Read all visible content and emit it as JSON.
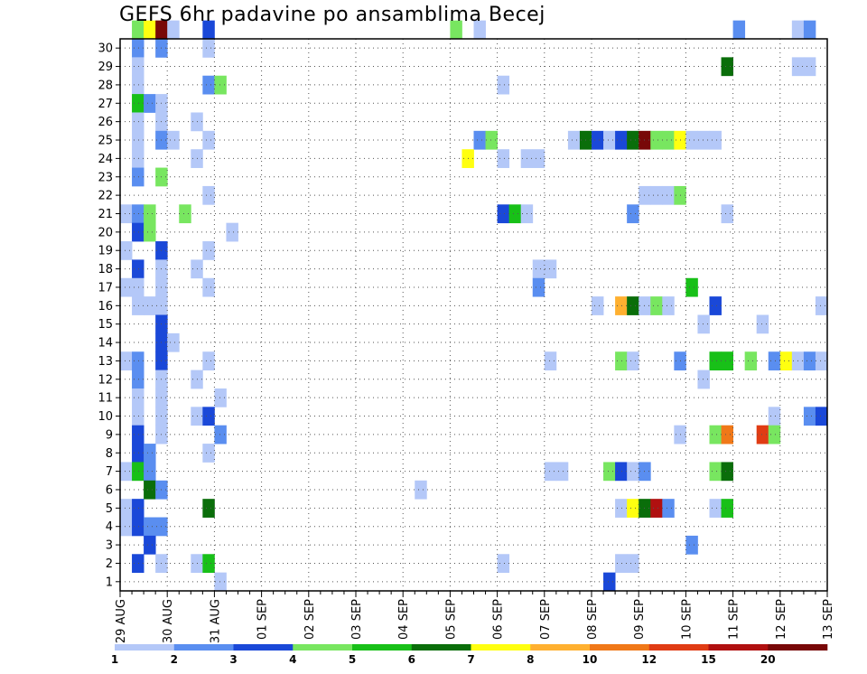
{
  "chart_data": {
    "type": "heatmap",
    "title": "GEFS 6hr padavine po ansamblima Becej",
    "xlabel": "",
    "ylabel": "",
    "x_tick_labels": [
      "29 AUG",
      "30 AUG",
      "31 AUG",
      "01 SEP",
      "02 SEP",
      "03 SEP",
      "04 SEP",
      "05 SEP",
      "06 SEP",
      "07 SEP",
      "08 SEP",
      "09 SEP",
      "10 SEP",
      "11 SEP",
      "12 SEP",
      "13 SEP"
    ],
    "x_unit": "6-hour steps",
    "x_range": [
      0,
      60
    ],
    "y_tick_labels": [
      1,
      2,
      3,
      4,
      5,
      6,
      7,
      8,
      9,
      10,
      11,
      12,
      13,
      14,
      15,
      16,
      17,
      18,
      19,
      20,
      21,
      22,
      23,
      24,
      25,
      26,
      27,
      28,
      29,
      30
    ],
    "y_range": [
      0,
      30
    ],
    "grid": true,
    "colorbar": {
      "labels": [
        "1",
        "2",
        "3",
        "4",
        "5",
        "6",
        "7",
        "8",
        "10",
        "12",
        "15",
        "20"
      ],
      "colors": [
        "#b4c8f8",
        "#5a8ef0",
        "#1a48d8",
        "#78e660",
        "#18c018",
        "#0a6e0a",
        "#ffff10",
        "#ffb030",
        "#f07818",
        "#e03c14",
        "#b01010",
        "#780808"
      ]
    },
    "cells": [
      [
        1,
        30,
        3
      ],
      [
        2,
        30,
        6
      ],
      [
        3,
        30,
        11
      ],
      [
        4,
        30,
        0
      ],
      [
        7,
        30,
        2
      ],
      [
        28,
        30,
        3
      ],
      [
        30,
        30,
        0
      ],
      [
        52,
        30,
        1
      ],
      [
        57,
        30,
        0
      ],
      [
        58,
        30,
        1
      ],
      [
        1,
        29,
        1
      ],
      [
        3,
        29,
        1
      ],
      [
        7,
        29,
        0
      ],
      [
        1,
        28,
        0
      ],
      [
        51,
        28,
        5
      ],
      [
        57,
        28,
        0
      ],
      [
        58,
        28,
        0
      ],
      [
        1,
        27,
        0
      ],
      [
        7,
        27,
        1
      ],
      [
        8,
        27,
        3
      ],
      [
        32,
        27,
        0
      ],
      [
        1,
        26,
        4
      ],
      [
        2,
        26,
        1
      ],
      [
        3,
        26,
        0
      ],
      [
        1,
        25,
        0
      ],
      [
        3,
        25,
        0
      ],
      [
        6,
        25,
        0
      ],
      [
        1,
        24,
        0
      ],
      [
        3,
        24,
        1
      ],
      [
        4,
        24,
        0
      ],
      [
        7,
        24,
        0
      ],
      [
        30,
        24,
        1
      ],
      [
        31,
        24,
        3
      ],
      [
        38,
        24,
        0
      ],
      [
        39,
        24,
        5
      ],
      [
        40,
        24,
        2
      ],
      [
        41,
        24,
        0
      ],
      [
        42,
        24,
        2
      ],
      [
        43,
        24,
        5
      ],
      [
        44,
        24,
        11
      ],
      [
        45,
        24,
        3
      ],
      [
        46,
        24,
        3
      ],
      [
        47,
        24,
        6
      ],
      [
        48,
        24,
        0
      ],
      [
        49,
        24,
        0
      ],
      [
        50,
        24,
        0
      ],
      [
        1,
        23,
        0
      ],
      [
        6,
        23,
        0
      ],
      [
        29,
        23,
        6
      ],
      [
        32,
        23,
        0
      ],
      [
        34,
        23,
        0
      ],
      [
        35,
        23,
        0
      ],
      [
        1,
        22,
        1
      ],
      [
        3,
        22,
        3
      ],
      [
        7,
        21,
        0
      ],
      [
        44,
        21,
        0
      ],
      [
        45,
        21,
        0
      ],
      [
        46,
        21,
        0
      ],
      [
        47,
        21,
        3
      ],
      [
        0,
        20,
        0
      ],
      [
        1,
        20,
        1
      ],
      [
        2,
        20,
        3
      ],
      [
        5,
        20,
        3
      ],
      [
        32,
        20,
        2
      ],
      [
        33,
        20,
        4
      ],
      [
        34,
        20,
        0
      ],
      [
        43,
        20,
        1
      ],
      [
        51,
        20,
        0
      ],
      [
        1,
        19,
        2
      ],
      [
        2,
        19,
        3
      ],
      [
        9,
        19,
        0
      ],
      [
        0,
        18,
        0
      ],
      [
        3,
        18,
        2
      ],
      [
        7,
        18,
        0
      ],
      [
        1,
        17,
        2
      ],
      [
        3,
        17,
        0
      ],
      [
        6,
        17,
        0
      ],
      [
        35,
        17,
        0
      ],
      [
        36,
        17,
        0
      ],
      [
        0,
        16,
        0
      ],
      [
        1,
        16,
        0
      ],
      [
        3,
        16,
        0
      ],
      [
        7,
        16,
        0
      ],
      [
        35,
        16,
        1
      ],
      [
        48,
        16,
        4
      ],
      [
        1,
        15,
        0
      ],
      [
        2,
        15,
        0
      ],
      [
        3,
        15,
        0
      ],
      [
        40,
        15,
        0
      ],
      [
        42,
        15,
        7
      ],
      [
        43,
        15,
        5
      ],
      [
        44,
        15,
        0
      ],
      [
        45,
        15,
        3
      ],
      [
        46,
        15,
        0
      ],
      [
        50,
        15,
        2
      ],
      [
        59,
        15,
        0
      ],
      [
        3,
        14,
        2
      ],
      [
        49,
        14,
        0
      ],
      [
        54,
        14,
        0
      ],
      [
        3,
        13,
        2
      ],
      [
        4,
        13,
        0
      ],
      [
        0,
        12,
        0
      ],
      [
        1,
        12,
        1
      ],
      [
        3,
        12,
        2
      ],
      [
        7,
        12,
        0
      ],
      [
        36,
        12,
        0
      ],
      [
        42,
        12,
        3
      ],
      [
        43,
        12,
        0
      ],
      [
        47,
        12,
        1
      ],
      [
        50,
        12,
        4
      ],
      [
        51,
        12,
        4
      ],
      [
        53,
        12,
        3
      ],
      [
        55,
        12,
        1
      ],
      [
        56,
        12,
        6
      ],
      [
        57,
        12,
        0
      ],
      [
        58,
        12,
        1
      ],
      [
        59,
        12,
        0
      ],
      [
        1,
        11,
        1
      ],
      [
        3,
        11,
        0
      ],
      [
        6,
        11,
        0
      ],
      [
        49,
        11,
        0
      ],
      [
        1,
        10,
        0
      ],
      [
        3,
        10,
        0
      ],
      [
        8,
        10,
        0
      ],
      [
        1,
        9,
        0
      ],
      [
        3,
        9,
        0
      ],
      [
        6,
        9,
        0
      ],
      [
        7,
        9,
        2
      ],
      [
        55,
        9,
        0
      ],
      [
        58,
        9,
        1
      ],
      [
        59,
        9,
        2
      ],
      [
        1,
        8,
        2
      ],
      [
        3,
        8,
        0
      ],
      [
        8,
        8,
        1
      ],
      [
        47,
        8,
        0
      ],
      [
        50,
        8,
        3
      ],
      [
        51,
        8,
        8
      ],
      [
        54,
        8,
        9
      ],
      [
        55,
        8,
        3
      ],
      [
        1,
        7,
        2
      ],
      [
        2,
        7,
        1
      ],
      [
        7,
        7,
        0
      ],
      [
        0,
        6,
        0
      ],
      [
        1,
        6,
        4
      ],
      [
        2,
        6,
        1
      ],
      [
        36,
        6,
        0
      ],
      [
        37,
        6,
        0
      ],
      [
        41,
        6,
        3
      ],
      [
        42,
        6,
        2
      ],
      [
        43,
        6,
        0
      ],
      [
        44,
        6,
        1
      ],
      [
        50,
        6,
        3
      ],
      [
        51,
        6,
        5
      ],
      [
        2,
        5,
        5
      ],
      [
        3,
        5,
        1
      ],
      [
        25,
        5,
        0
      ],
      [
        0,
        4,
        0
      ],
      [
        1,
        4,
        2
      ],
      [
        7,
        4,
        5
      ],
      [
        42,
        4,
        0
      ],
      [
        43,
        4,
        6
      ],
      [
        44,
        4,
        5
      ],
      [
        45,
        4,
        10
      ],
      [
        46,
        4,
        1
      ],
      [
        50,
        4,
        0
      ],
      [
        51,
        4,
        4
      ],
      [
        0,
        3,
        0
      ],
      [
        1,
        3,
        2
      ],
      [
        2,
        3,
        1
      ],
      [
        3,
        3,
        1
      ],
      [
        2,
        2,
        2
      ],
      [
        48,
        2,
        1
      ],
      [
        1,
        1,
        2
      ],
      [
        3,
        1,
        0
      ],
      [
        6,
        1,
        0
      ],
      [
        7,
        1,
        4
      ],
      [
        32,
        1,
        0
      ],
      [
        42,
        1,
        0
      ],
      [
        43,
        1,
        0
      ],
      [
        8,
        0,
        0
      ],
      [
        41,
        0,
        2
      ]
    ]
  }
}
